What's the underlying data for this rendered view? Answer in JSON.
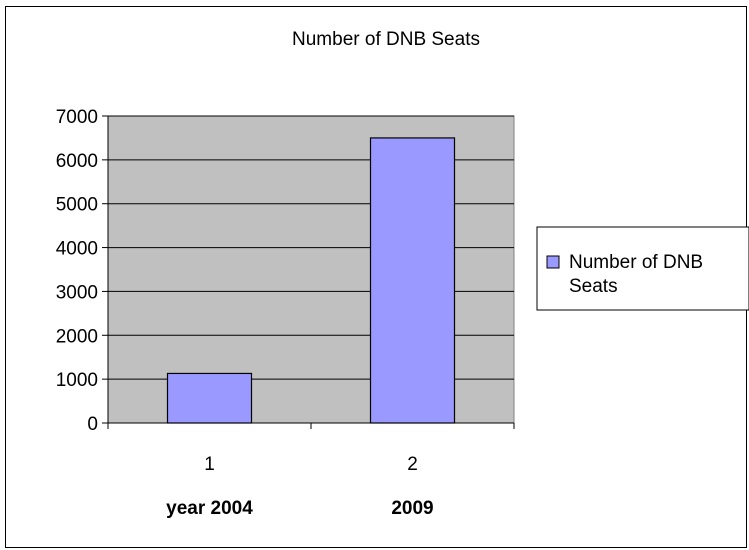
{
  "chart_data": {
    "type": "bar",
    "title": "Number of DNB Seats",
    "categories": [
      "1",
      "2"
    ],
    "category_sublabels": [
      "year 2004",
      "2009"
    ],
    "series": [
      {
        "name": "Number of DNB Seats",
        "values": [
          1130,
          6500
        ],
        "color": "#9999ff"
      }
    ],
    "ylim": [
      0,
      7000
    ],
    "yticks": [
      0,
      1000,
      2000,
      3000,
      4000,
      5000,
      6000,
      7000
    ],
    "grid": true,
    "plot_background": "#c0c0c0",
    "legend_position": "right",
    "legend_lines": [
      "Number of DNB",
      "Seats"
    ]
  }
}
